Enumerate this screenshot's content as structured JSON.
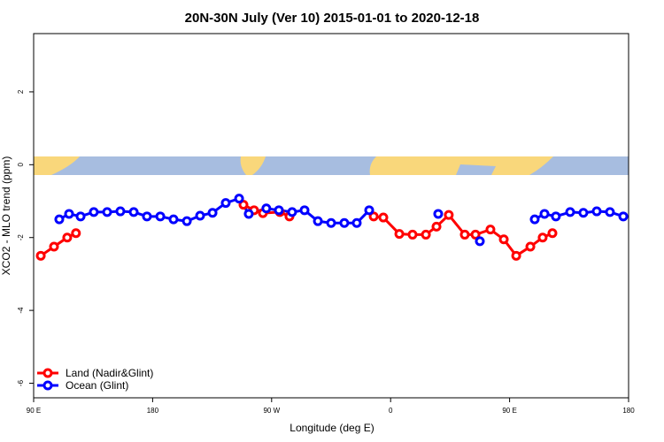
{
  "chart_data": {
    "type": "line",
    "title": "20N-30N July (Ver 10)   2015-01-01 to 2020-12-18",
    "x_label": "Longitude (deg E)",
    "y_label": "XCO2 - MLO trend (ppm)",
    "xlim": [
      90,
      540
    ],
    "ylim": [
      -6.4,
      3.6
    ],
    "xticks": [
      {
        "value": 90,
        "label": "90 E"
      },
      180,
      {
        "value": 270,
        "label": "90 W"
      },
      {
        "value": 360,
        "label": "0"
      },
      {
        "value": 450,
        "label": "90 E"
      },
      {
        "value": 540,
        "label": "180"
      }
    ],
    "yticks": [
      -6,
      -4,
      -2,
      0,
      2
    ],
    "legend": "bottom-left",
    "series": [
      {
        "name": "Land (Nadir&Glint)",
        "color": "#ff0000",
        "x": [
          95.4,
          105.4,
          115.4,
          122.0,
          null,
          248.7,
          256.7,
          263.4,
          276.2,
          283.5,
          null,
          347.2,
          354.5,
          366.6,
          376.6,
          386.7,
          394.7,
          404.0,
          416.1,
          424.2,
          435.5,
          445.6,
          455.0,
          465.7,
          475.0,
          482.4
        ],
        "values": [
          -2.5,
          -2.25,
          -2.0,
          -1.88,
          null,
          -1.1,
          -1.25,
          -1.33,
          -1.3,
          -1.42,
          null,
          -1.42,
          -1.45,
          -1.9,
          -1.92,
          -1.92,
          -1.7,
          -1.38,
          -1.92,
          -1.92,
          -1.78,
          -2.05,
          -2.5,
          -2.25,
          -2.0,
          -1.88
        ]
      },
      {
        "name": "Ocean (Glint)",
        "color": "#0000ff",
        "x": [
          109.4,
          116.8,
          125.5,
          135.5,
          145.6,
          155.6,
          165.7,
          175.7,
          185.8,
          195.8,
          205.9,
          215.9,
          225.3,
          235.3,
          245.4,
          252.7,
          266.0,
          275.5,
          285.5,
          294.9,
          305.0,
          315.0,
          325.0,
          334.4,
          343.8,
          null,
          396.0,
          null,
          427.5,
          null,
          469.0,
          476.4,
          485.0,
          495.8,
          505.8,
          515.9,
          525.9,
          536.0
        ],
        "values": [
          -1.5,
          -1.35,
          -1.42,
          -1.3,
          -1.3,
          -1.28,
          -1.3,
          -1.42,
          -1.42,
          -1.5,
          -1.55,
          -1.4,
          -1.32,
          -1.05,
          -0.93,
          -1.35,
          -1.2,
          -1.25,
          -1.3,
          -1.25,
          -1.55,
          -1.6,
          -1.6,
          -1.6,
          -1.25,
          null,
          -1.35,
          null,
          -2.1,
          null,
          -1.5,
          -1.35,
          -1.42,
          -1.3,
          -1.32,
          -1.28,
          -1.3,
          -1.42
        ]
      }
    ]
  }
}
